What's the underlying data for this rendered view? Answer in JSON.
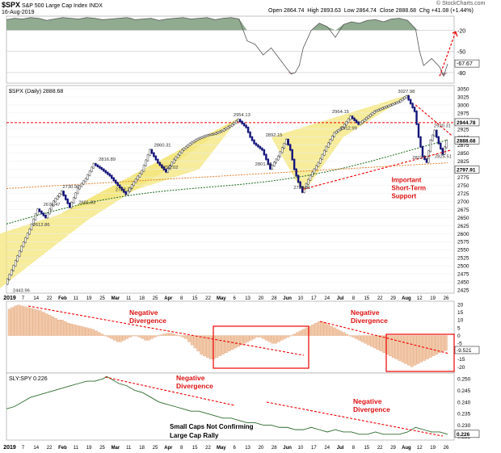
{
  "header": {
    "symbol": "$SPX",
    "name": "S&P 500 Large Cap Index",
    "exchange": "INDX",
    "date": "16-Aug-2019",
    "open_label": "Open",
    "open": "2864.74",
    "high_label": "High",
    "high": "2893.63",
    "low_label": "Low",
    "low": "2864.74",
    "close_label": "Close",
    "close": "2888.68",
    "chg_label": "Chg",
    "chg": "+41.08 (+1.44%)",
    "watermark": "© StockCharts.com"
  },
  "chart_data": [
    {
      "type": "line",
      "panel": "rsi",
      "y_ticks": [
        -20,
        -50,
        -80
      ],
      "last_value_label": "-67.67",
      "ylim": [
        -95,
        0
      ],
      "colors": {
        "above": "#6b8f6b",
        "below": "#b07a8a"
      },
      "x": [
        0,
        10,
        20,
        30,
        40,
        50,
        60,
        70,
        80,
        90,
        100,
        110,
        120,
        130,
        140,
        150,
        155,
        160,
        170,
        180,
        190,
        200,
        210,
        220,
        230,
        240,
        250,
        260,
        270,
        280,
        290,
        300,
        310,
        320,
        330,
        340,
        350,
        355,
        360,
        365,
        370,
        380,
        390,
        400,
        410,
        420,
        430,
        440,
        450,
        460,
        470,
        480,
        490,
        500,
        510,
        515,
        520,
        530,
        540,
        545,
        550
      ],
      "values": [
        -5,
        -3,
        -4,
        -2,
        -3,
        -6,
        -4,
        -2,
        -3,
        -4,
        -2,
        -3,
        -5,
        -4,
        -3,
        -2,
        -3,
        -5,
        -4,
        -3,
        -6,
        -4,
        -3,
        -2,
        -4,
        -3,
        -2,
        -5,
        -3,
        -2,
        -4,
        -35,
        -40,
        -55,
        -45,
        -60,
        -75,
        -82,
        -80,
        -70,
        -45,
        -20,
        -10,
        -15,
        -30,
        -12,
        -8,
        -10,
        -6,
        -5,
        -8,
        -4,
        -3,
        -6,
        -18,
        -50,
        -70,
        -60,
        -72,
        -85,
        -67.67
      ]
    },
    {
      "type": "candlestick",
      "panel": "price",
      "label": "$SPX (Daily) 2888.68",
      "y_ticks": [
        3050,
        3025,
        3000,
        2975,
        2950,
        2925,
        2900,
        2875,
        2850,
        2825,
        2800,
        2775,
        2750,
        2725,
        2700,
        2675,
        2650,
        2625,
        2600,
        2575,
        2550,
        2525,
        2500,
        2475,
        2450,
        2425
      ],
      "ylim": [
        2415,
        3060
      ],
      "right_labels": [
        "2944.78",
        "2888.68",
        "2797.91"
      ],
      "x_ticks": [
        "2019",
        "7",
        "14",
        "22",
        "Feb",
        "11",
        "19",
        "25",
        "Mar",
        "11",
        "18",
        "25",
        "Apr",
        "8",
        "15",
        "22",
        "May",
        "6",
        "13",
        "20",
        "28",
        "Jun",
        "10",
        "17",
        "24",
        "Jul",
        "8",
        "15",
        "22",
        "29",
        "Aug",
        "12",
        "19",
        "26"
      ],
      "close_path": [
        [
          0,
          2443.96
        ],
        [
          10,
          2500
        ],
        [
          20,
          2560
        ],
        [
          30,
          2612.86
        ],
        [
          40,
          2675.47
        ],
        [
          50,
          2650
        ],
        [
          60,
          2700
        ],
        [
          70,
          2730.96
        ],
        [
          80,
          2681.83
        ],
        [
          90,
          2740
        ],
        [
          100,
          2770
        ],
        [
          110,
          2816.89
        ],
        [
          120,
          2800
        ],
        [
          130,
          2780
        ],
        [
          140,
          2750
        ],
        [
          150,
          2722.27
        ],
        [
          160,
          2760
        ],
        [
          170,
          2795
        ],
        [
          180,
          2860.31
        ],
        [
          190,
          2820
        ],
        [
          200,
          2792.02
        ],
        [
          210,
          2830
        ],
        [
          220,
          2860
        ],
        [
          230,
          2880
        ],
        [
          240,
          2895
        ],
        [
          250,
          2905
        ],
        [
          260,
          2910
        ],
        [
          270,
          2920
        ],
        [
          280,
          2935
        ],
        [
          290,
          2954.13
        ],
        [
          300,
          2930
        ],
        [
          305,
          2900
        ],
        [
          310,
          2880
        ],
        [
          320,
          2860
        ],
        [
          330,
          2801.43
        ],
        [
          340,
          2840
        ],
        [
          350,
          2892.15
        ],
        [
          355,
          2860
        ],
        [
          360,
          2800
        ],
        [
          365,
          2760
        ],
        [
          370,
          2728.81
        ],
        [
          380,
          2780
        ],
        [
          390,
          2820
        ],
        [
          400,
          2870
        ],
        [
          410,
          2912.99
        ],
        [
          420,
          2930
        ],
        [
          430,
          2964.15
        ],
        [
          440,
          2940
        ],
        [
          450,
          2960
        ],
        [
          460,
          2980
        ],
        [
          470,
          2990
        ],
        [
          480,
          3000
        ],
        [
          490,
          3010
        ],
        [
          500,
          3027.98
        ],
        [
          510,
          2980
        ],
        [
          515,
          2900
        ],
        [
          520,
          2840
        ],
        [
          525,
          2822.12
        ],
        [
          530,
          2890
        ],
        [
          535,
          2920.31
        ],
        [
          540,
          2880
        ],
        [
          545,
          2847.6
        ],
        [
          550,
          2888.68
        ]
      ],
      "annotations": [
        {
          "x": 20,
          "y": 2443.96,
          "text": "2443.96"
        },
        {
          "x": 45,
          "y": 2612.86,
          "text": "2612.86"
        },
        {
          "x": 58,
          "y": 2675.47,
          "text": "2675.47"
        },
        {
          "x": 82,
          "y": 2730.96,
          "text": "2730.96"
        },
        {
          "x": 102,
          "y": 2681.83,
          "text": "2681.83"
        },
        {
          "x": 127,
          "y": 2816.89,
          "text": "2816.89"
        },
        {
          "x": 148,
          "y": 2722.27,
          "text": "2722.27"
        },
        {
          "x": 196,
          "y": 2860.31,
          "text": "2860.31"
        },
        {
          "x": 205,
          "y": 2792.02,
          "text": "2792.02"
        },
        {
          "x": 295,
          "y": 2954.13,
          "text": "2954.13"
        },
        {
          "x": 322,
          "y": 2801.43,
          "text": "2801.43"
        },
        {
          "x": 335,
          "y": 2892.15,
          "text": "2892.15"
        },
        {
          "x": 370,
          "y": 2728.81,
          "text": "2728.81"
        },
        {
          "x": 428,
          "y": 2912.99,
          "text": "2912.99"
        },
        {
          "x": 418,
          "y": 2964.15,
          "text": "2964.15"
        },
        {
          "x": 500,
          "y": 3027.98,
          "text": "3027.98"
        },
        {
          "x": 545,
          "y": 2920.31,
          "text": "2920.31"
        },
        {
          "x": 518,
          "y": 2822.12,
          "text": "2822.12"
        },
        {
          "x": 546,
          "y": 2825.51,
          "text": "2825.51"
        }
      ],
      "support_text": [
        "Important",
        "Short-Term",
        "Support"
      ],
      "resistance_level": 2944.78
    },
    {
      "type": "bar",
      "panel": "macd",
      "y_ticks": [
        20,
        15,
        10,
        5,
        0,
        -5,
        -10,
        -15,
        -20
      ],
      "ylim": [
        -24,
        22
      ],
      "last_value_label": "-9.521",
      "annotation": [
        "Negative",
        "Divergence"
      ],
      "annotation2": [
        "Negative",
        "Divergence"
      ],
      "bars": [
        17,
        18,
        19,
        19.5,
        19,
        18.5,
        18,
        17.5,
        17,
        16.5,
        16,
        15,
        14,
        13,
        12,
        11,
        10,
        10,
        9,
        8,
        7.5,
        7,
        6.5,
        6,
        5.5,
        5,
        4.5,
        4,
        3,
        2,
        1,
        0,
        -1,
        -2,
        -3,
        -4,
        -4,
        -3,
        -2,
        -1,
        0,
        0,
        -1,
        -2,
        -3,
        -3,
        -2,
        -1,
        0,
        0.5,
        1,
        1.5,
        1.5,
        1,
        0.5,
        0,
        -1,
        -2,
        -4,
        -6,
        -8,
        -10,
        -12,
        -13,
        -14,
        -15,
        -15,
        -14,
        -13,
        -12,
        -11,
        -10,
        -9,
        -8,
        -7,
        -6,
        -5,
        -4,
        -3,
        -2,
        -1,
        -1,
        -2,
        -3,
        -4,
        -5,
        -5,
        -4,
        -3,
        -2,
        -1,
        0,
        1,
        2,
        3,
        4,
        5,
        6,
        7,
        8,
        9,
        9,
        8,
        7,
        6,
        5,
        4,
        3,
        2,
        1,
        0,
        -1,
        -2,
        -3,
        -4,
        -5,
        -6,
        -7,
        -8,
        -9,
        -10,
        -11,
        -12,
        -13,
        -14,
        -15,
        -16,
        -17,
        -18,
        -19,
        -20,
        -19,
        -18,
        -17,
        -16,
        -15,
        -14,
        -13,
        -12,
        -11,
        -10,
        -9.5
      ]
    },
    {
      "type": "line",
      "panel": "sly_spy",
      "label": "SLY:SPY 0.226",
      "y_ticks": [
        0.25,
        0.245,
        0.24,
        0.235,
        0.23,
        0.225
      ],
      "ylim": [
        0.2235,
        0.2525
      ],
      "last_value_label": "0.226",
      "annotation": [
        "Negative",
        "Divergence"
      ],
      "annotation2": [
        "Negative",
        "Divergence"
      ],
      "caption": [
        "Small Caps Not Confirming",
        "Large Cap Rally"
      ],
      "x": [
        0,
        10,
        20,
        30,
        40,
        50,
        60,
        70,
        80,
        90,
        100,
        110,
        120,
        125,
        130,
        140,
        150,
        160,
        170,
        180,
        190,
        200,
        210,
        220,
        230,
        240,
        250,
        260,
        270,
        280,
        290,
        300,
        310,
        320,
        330,
        340,
        350,
        360,
        370,
        380,
        390,
        400,
        410,
        420,
        430,
        440,
        450,
        460,
        470,
        480,
        490,
        500,
        510,
        520,
        530,
        540,
        550
      ],
      "values": [
        0.237,
        0.238,
        0.24,
        0.242,
        0.243,
        0.244,
        0.245,
        0.246,
        0.247,
        0.248,
        0.249,
        0.249,
        0.25,
        0.251,
        0.25,
        0.248,
        0.247,
        0.245,
        0.244,
        0.242,
        0.24,
        0.239,
        0.238,
        0.237,
        0.236,
        0.236,
        0.235,
        0.234,
        0.233,
        0.233,
        0.232,
        0.231,
        0.231,
        0.23,
        0.23,
        0.229,
        0.229,
        0.228,
        0.228,
        0.229,
        0.228,
        0.227,
        0.228,
        0.227,
        0.227,
        0.226,
        0.226,
        0.227,
        0.226,
        0.226,
        0.226,
        0.227,
        0.229,
        0.228,
        0.227,
        0.227,
        0.226
      ]
    }
  ]
}
